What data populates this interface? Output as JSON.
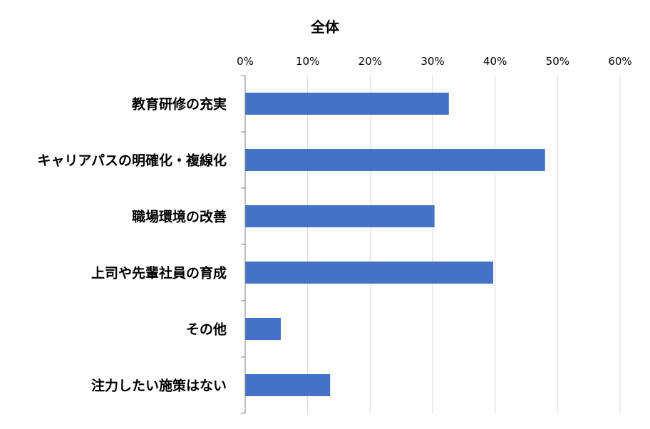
{
  "chart_data": {
    "type": "bar",
    "orientation": "horizontal",
    "title": "全体",
    "categories": [
      "教育研修の充実",
      "キャリアパスの明確化・複線化",
      "職場環境の改善",
      "上司や先輩社員の育成",
      "その他",
      "注力したい施策はない"
    ],
    "values": [
      32.6,
      48.0,
      30.3,
      39.7,
      5.7,
      13.6
    ],
    "xlim": [
      0,
      60
    ],
    "x_ticks": [
      "0%",
      "10%",
      "20%",
      "30%",
      "40%",
      "50%",
      "60%"
    ],
    "x_axis_position": "top",
    "grid": true,
    "bar_color": "#4472C4"
  }
}
